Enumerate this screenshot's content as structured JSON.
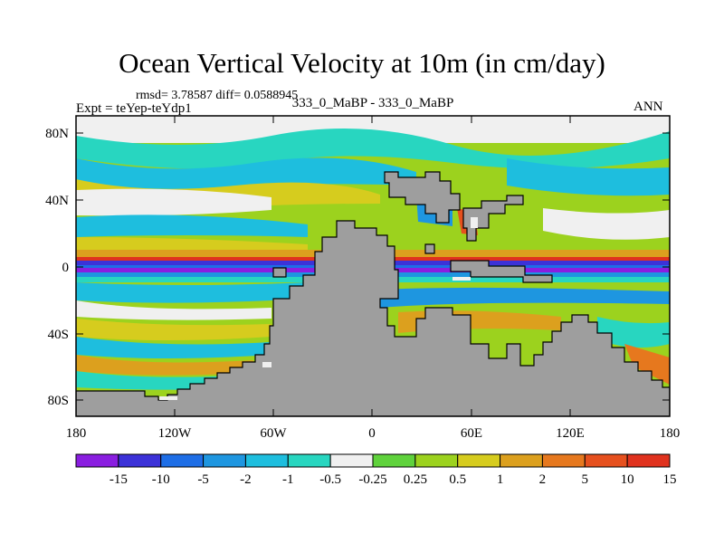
{
  "title": "Ocean Vertical Velocity at 10m (in cm/day)",
  "stats_line": "rmsd= 3.78587 diff= 0.0588945",
  "experiment_label": "Expt = teYep-teYdp1",
  "comparison_label": "333_0_MaBP - 333_0_MaBP",
  "season_label": "ANN",
  "x_ticks": [
    "180",
    "120W",
    "60W",
    "0",
    "60E",
    "120E",
    "180"
  ],
  "y_ticks": [
    "80N",
    "40N",
    "0",
    "40S",
    "80S"
  ],
  "colorbar": {
    "labels": [
      "-15",
      "-10",
      "-5",
      "-2",
      "-1",
      "-0.5",
      "-0.25",
      "0.25",
      "0.5",
      "1",
      "2",
      "5",
      "10",
      "15"
    ],
    "colors": [
      "#8a1ee0",
      "#3c32d8",
      "#1e6ee6",
      "#1e96e0",
      "#1ebede",
      "#28d6c0",
      "#f0f0f0",
      "#5fd23c",
      "#9cd21e",
      "#d6cc1e",
      "#dca01e",
      "#e6781e",
      "#e6501e",
      "#e0321e"
    ]
  },
  "land_color": "#9e9e9e"
}
